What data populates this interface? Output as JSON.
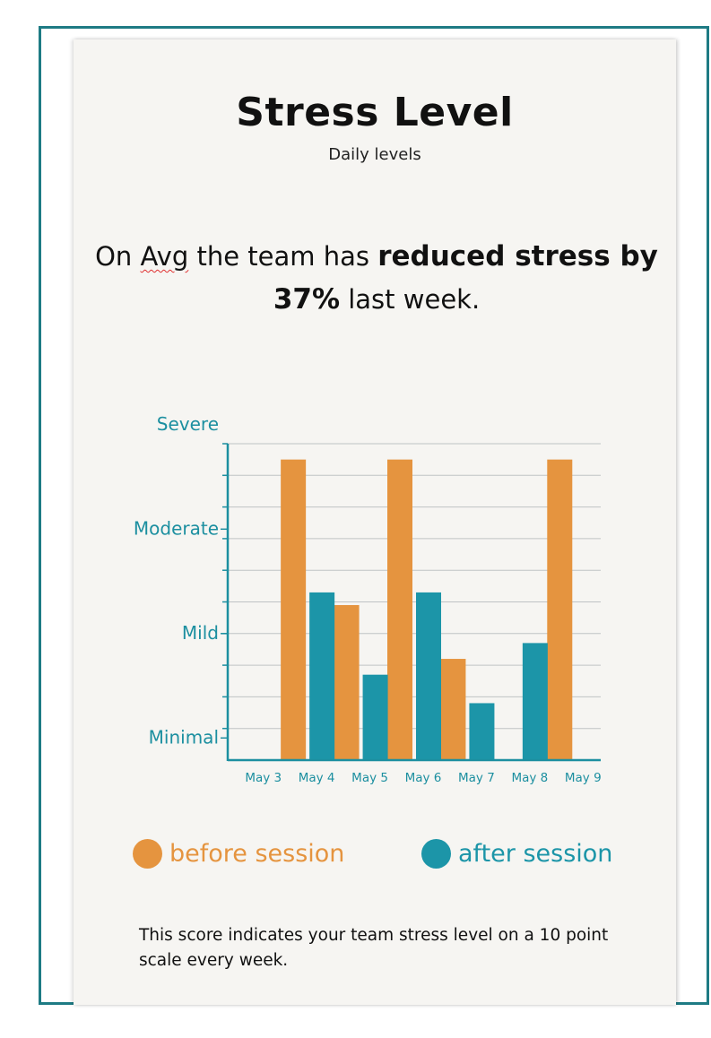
{
  "header": {
    "title": "Stress Level",
    "subtitle": "Daily levels"
  },
  "headline": {
    "part1": "On ",
    "avg_word": "Avg",
    "part2": " the team has ",
    "bold": "reduced stress by 37%",
    "part3": " last week."
  },
  "legend": {
    "before_label": "before session",
    "after_label": "after session"
  },
  "footnote": "This score indicates your team stress level on a 10 point scale every week.",
  "colors": {
    "before": "#e5943f",
    "after": "#1c95a8",
    "axis": "#1c8fa0",
    "grid": "#bfc3c4",
    "card": "#f6f5f2",
    "frame": "#1e7b84"
  },
  "chart_data": {
    "type": "bar",
    "categories": [
      "May 3",
      "May 4",
      "May 5",
      "May 6",
      "May 7",
      "May 8",
      "May 9"
    ],
    "series": [
      {
        "name": "before session",
        "values": [
          0,
          9.5,
          4.9,
          9.5,
          3.2,
          0,
          9.5
        ]
      },
      {
        "name": "after session",
        "values": [
          0,
          5.3,
          2.7,
          5.3,
          1.8,
          3.7,
          0
        ]
      }
    ],
    "ylim": [
      0,
      10
    ],
    "y_tick_labels": [
      {
        "label": "Minimal",
        "value": 0.7
      },
      {
        "label": "Mild",
        "value": 4.0
      },
      {
        "label": "Moderate",
        "value": 7.3
      },
      {
        "label": "Severe",
        "value": 10.6
      }
    ],
    "grid": true,
    "legend": "bottom"
  }
}
